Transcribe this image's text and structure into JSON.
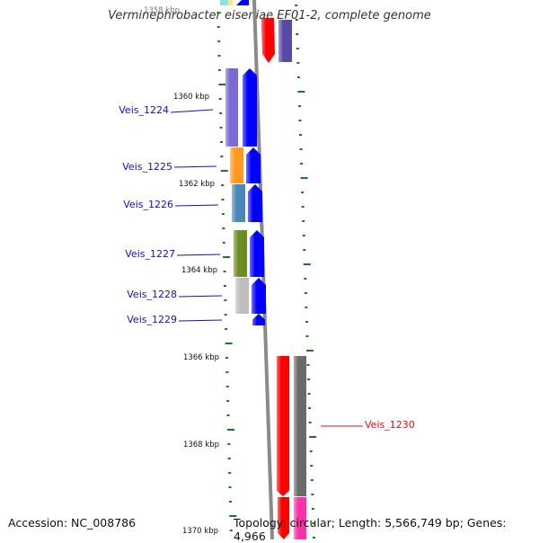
{
  "title": "Verminephrobacter eiseniae EF01-2, complete genome",
  "accession": "Accession: NC_008786",
  "topology": "Topology: circular; Length: 5,566,749 bp; Genes: 4,966",
  "colors": {
    "tick": "#1b7a1b",
    "backbone": "#8a8a8a",
    "gene_label": "#1010cc",
    "gene_label_red": "#dd1111",
    "forward_cds": "#0000ff",
    "reverse_cds": "#ff0000"
  },
  "scale_labels": [
    "1358 kbp",
    "1360 kbp",
    "1362 kbp",
    "1364 kbp",
    "1366 kbp",
    "1368 kbp",
    "1370 kbp"
  ],
  "genes": [
    {
      "label": "Veis_1224",
      "strand": "+",
      "cog_color": "#7a6ad6"
    },
    {
      "label": "Veis_1225",
      "strand": "+",
      "cog_color": "#ff9a1f"
    },
    {
      "label": "Veis_1226",
      "strand": "+",
      "cog_color": "#4a86b8"
    },
    {
      "label": "Veis_1227",
      "strand": "+",
      "cog_color": "#6b8e23"
    },
    {
      "label": "Veis_1228",
      "strand": "+",
      "cog_color": "#bdbdbd"
    },
    {
      "label": "Veis_1229",
      "strand": "+",
      "cog_color": null
    },
    {
      "label": "Veis_1230",
      "strand": "-",
      "cog_color": "#6a6a6a"
    }
  ]
}
